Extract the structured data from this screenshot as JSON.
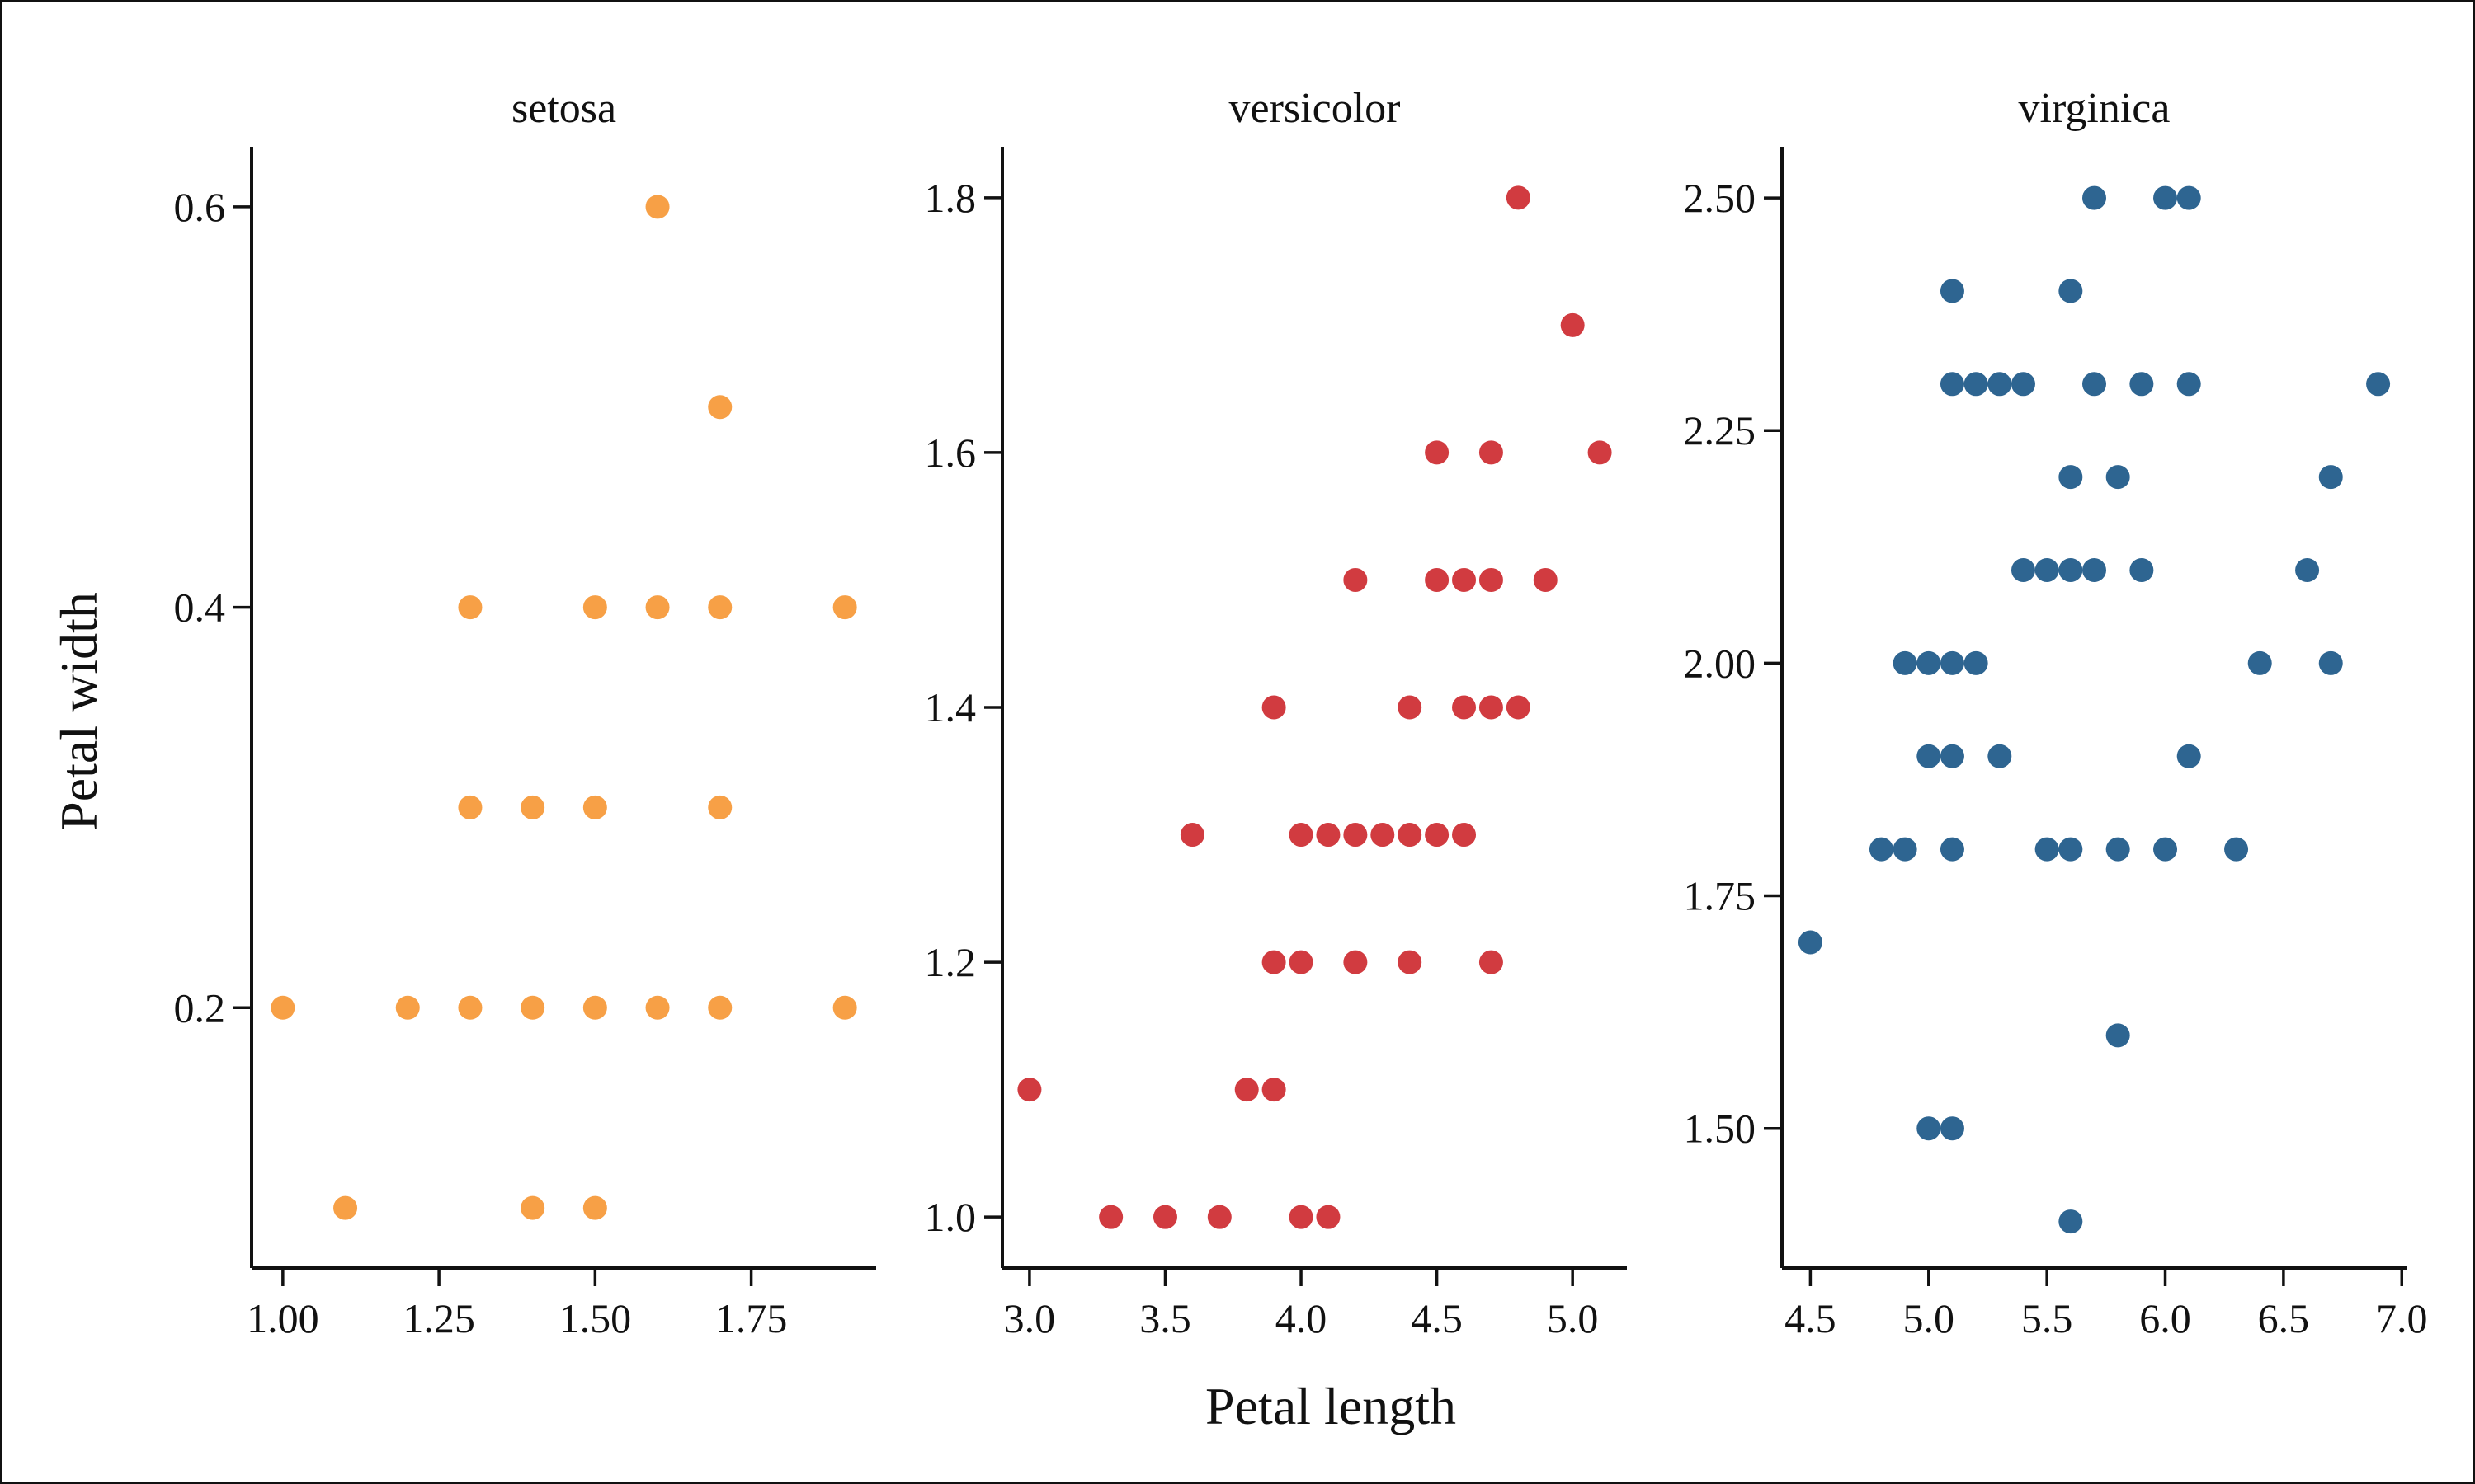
{
  "chart_data": {
    "type": "scatter",
    "xlabel": "Petal length",
    "ylabel": "Petal width",
    "grid": false,
    "panels": [
      {
        "title": "setosa",
        "color": "#F7A046",
        "xlim": [
          0.95,
          1.95
        ],
        "ylim": [
          0.07,
          0.63
        ],
        "xticks": [
          1.0,
          1.25,
          1.5,
          1.75
        ],
        "xtick_labels": [
          "1.00",
          "1.25",
          "1.50",
          "1.75"
        ],
        "yticks": [
          0.2,
          0.4,
          0.6
        ],
        "ytick_labels": [
          "0.2",
          "0.4",
          "0.6"
        ],
        "points": [
          [
            1.6,
            0.6
          ],
          [
            1.7,
            0.5
          ],
          [
            1.3,
            0.4
          ],
          [
            1.5,
            0.4
          ],
          [
            1.6,
            0.4
          ],
          [
            1.7,
            0.4
          ],
          [
            1.9,
            0.4
          ],
          [
            1.3,
            0.3
          ],
          [
            1.4,
            0.3
          ],
          [
            1.5,
            0.3
          ],
          [
            1.7,
            0.3
          ],
          [
            1.0,
            0.2
          ],
          [
            1.2,
            0.2
          ],
          [
            1.3,
            0.2
          ],
          [
            1.4,
            0.2
          ],
          [
            1.5,
            0.2
          ],
          [
            1.6,
            0.2
          ],
          [
            1.7,
            0.2
          ],
          [
            1.9,
            0.2
          ],
          [
            1.1,
            0.1
          ],
          [
            1.4,
            0.1
          ],
          [
            1.5,
            0.1
          ]
        ]
      },
      {
        "title": "versicolor",
        "color": "#D13B40",
        "xlim": [
          2.9,
          5.2
        ],
        "ylim": [
          0.96,
          1.84
        ],
        "xticks": [
          3.0,
          3.5,
          4.0,
          4.5,
          5.0
        ],
        "xtick_labels": [
          "3.0",
          "3.5",
          "4.0",
          "4.5",
          "5.0"
        ],
        "yticks": [
          1.0,
          1.2,
          1.4,
          1.6,
          1.8
        ],
        "ytick_labels": [
          "1.0",
          "1.2",
          "1.4",
          "1.6",
          "1.8"
        ],
        "points": [
          [
            4.8,
            1.8
          ],
          [
            5.0,
            1.7
          ],
          [
            4.5,
            1.6
          ],
          [
            4.7,
            1.6
          ],
          [
            5.1,
            1.6
          ],
          [
            4.2,
            1.5
          ],
          [
            4.5,
            1.5
          ],
          [
            4.6,
            1.5
          ],
          [
            4.7,
            1.5
          ],
          [
            4.9,
            1.5
          ],
          [
            3.9,
            1.4
          ],
          [
            4.4,
            1.4
          ],
          [
            4.6,
            1.4
          ],
          [
            4.7,
            1.4
          ],
          [
            4.8,
            1.4
          ],
          [
            3.6,
            1.3
          ],
          [
            4.0,
            1.3
          ],
          [
            4.1,
            1.3
          ],
          [
            4.2,
            1.3
          ],
          [
            4.3,
            1.3
          ],
          [
            4.4,
            1.3
          ],
          [
            4.5,
            1.3
          ],
          [
            4.6,
            1.3
          ],
          [
            3.9,
            1.2
          ],
          [
            4.0,
            1.2
          ],
          [
            4.2,
            1.2
          ],
          [
            4.4,
            1.2
          ],
          [
            4.7,
            1.2
          ],
          [
            3.0,
            1.1
          ],
          [
            3.8,
            1.1
          ],
          [
            3.9,
            1.1
          ],
          [
            3.3,
            1.0
          ],
          [
            3.5,
            1.0
          ],
          [
            3.7,
            1.0
          ],
          [
            4.0,
            1.0
          ],
          [
            4.1,
            1.0
          ]
        ]
      },
      {
        "title": "virginica",
        "color": "#2E6591",
        "xlim": [
          4.38,
          7.02
        ],
        "ylim": [
          1.35,
          2.555
        ],
        "xticks": [
          4.5,
          5.0,
          5.5,
          6.0,
          6.5,
          7.0
        ],
        "xtick_labels": [
          "4.5",
          "5.0",
          "5.5",
          "6.0",
          "6.5",
          "7.0"
        ],
        "yticks": [
          1.5,
          1.75,
          2.0,
          2.25,
          2.5
        ],
        "ytick_labels": [
          "1.50",
          "1.75",
          "2.00",
          "2.25",
          "2.50"
        ],
        "points": [
          [
            5.7,
            2.5
          ],
          [
            6.0,
            2.5
          ],
          [
            6.1,
            2.5
          ],
          [
            5.1,
            2.4
          ],
          [
            5.6,
            2.4
          ],
          [
            5.1,
            2.3
          ],
          [
            5.2,
            2.3
          ],
          [
            5.3,
            2.3
          ],
          [
            5.4,
            2.3
          ],
          [
            5.7,
            2.3
          ],
          [
            5.9,
            2.3
          ],
          [
            6.1,
            2.3
          ],
          [
            6.9,
            2.3
          ],
          [
            5.6,
            2.2
          ],
          [
            5.8,
            2.2
          ],
          [
            6.7,
            2.2
          ],
          [
            5.4,
            2.1
          ],
          [
            5.5,
            2.1
          ],
          [
            5.6,
            2.1
          ],
          [
            5.7,
            2.1
          ],
          [
            5.9,
            2.1
          ],
          [
            6.6,
            2.1
          ],
          [
            4.9,
            2.0
          ],
          [
            5.0,
            2.0
          ],
          [
            5.1,
            2.0
          ],
          [
            5.2,
            2.0
          ],
          [
            6.4,
            2.0
          ],
          [
            6.7,
            2.0
          ],
          [
            5.0,
            1.9
          ],
          [
            5.1,
            1.9
          ],
          [
            5.3,
            1.9
          ],
          [
            6.1,
            1.9
          ],
          [
            4.8,
            1.8
          ],
          [
            4.9,
            1.8
          ],
          [
            5.1,
            1.8
          ],
          [
            5.5,
            1.8
          ],
          [
            5.6,
            1.8
          ],
          [
            5.8,
            1.8
          ],
          [
            6.0,
            1.8
          ],
          [
            6.3,
            1.8
          ],
          [
            4.5,
            1.7
          ],
          [
            5.8,
            1.6
          ],
          [
            5.0,
            1.5
          ],
          [
            5.1,
            1.5
          ],
          [
            5.6,
            1.4
          ]
        ]
      }
    ]
  }
}
